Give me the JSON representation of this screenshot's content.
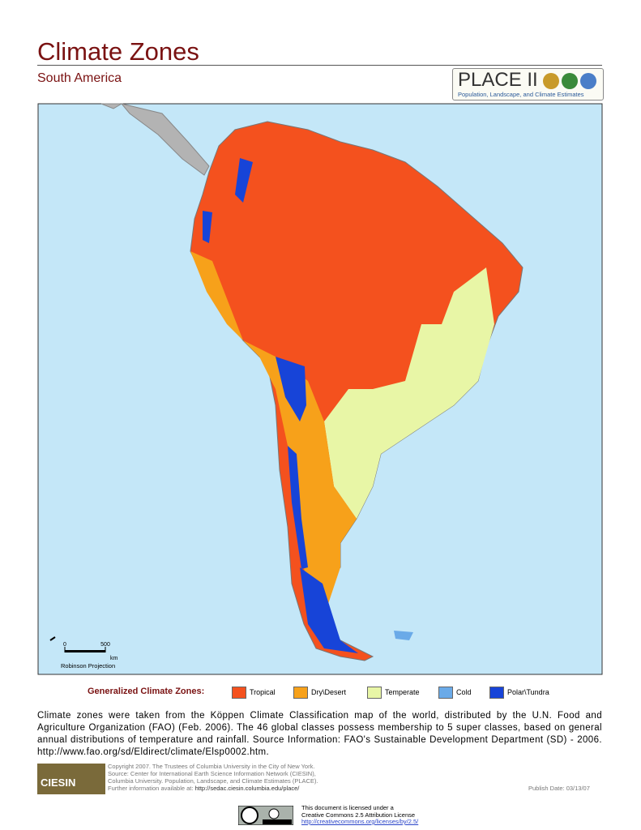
{
  "header": {
    "title": "Climate Zones",
    "subtitle": "South America",
    "logo": {
      "name": "PLACE II",
      "tagline": "Population, Landscape, and Climate Estimates"
    }
  },
  "map": {
    "scale": {
      "ticks": [
        0,
        500
      ],
      "unit": "km",
      "projection": "Robinson Projection"
    }
  },
  "legend": {
    "title": "Generalized Climate Zones:",
    "items": [
      {
        "label": "Tropical",
        "color": "#f4511e"
      },
      {
        "label": "Dry\\Desert",
        "color": "#f7a11a"
      },
      {
        "label": "Temperate",
        "color": "#e8f6a6"
      },
      {
        "label": "Cold",
        "color": "#6aaae8"
      },
      {
        "label": "Polar\\Tundra",
        "color": "#1744d8"
      }
    ]
  },
  "description": "Climate zones were taken from the Köppen Climate Classification map of the world, distributed by the U.N. Food and Agriculture Organization (FAO) (Feb. 2006). The 46 global classes possess membership to 5 super classes, based on general annual distributions of temperature and rainfall. Source Information: FAO's Sustainable Development Department (SD) - 2006. http://www.fao.org/sd/Eldirect/climate/Elsp0002.htm.",
  "credits": {
    "org": "CIESIN",
    "lines": [
      "Copyright 2007. The Trustees of Columbia University in the City of New York.",
      "Source: Center for International Earth Science Information Network (CIESIN),",
      "Columbia University. Population, Landscape, and Climate Estimates (PLACE).",
      "Further information available at:"
    ],
    "url": "http://sedac.ciesin.columbia.edu/place/"
  },
  "publish_date": "Publish Date: 03/13/07",
  "license": {
    "lines": [
      "This document is licensed under a",
      "Creative Commons 2.5 Attribution License",
      "http://creativecommons.org/licenses/by/2.5/"
    ]
  }
}
